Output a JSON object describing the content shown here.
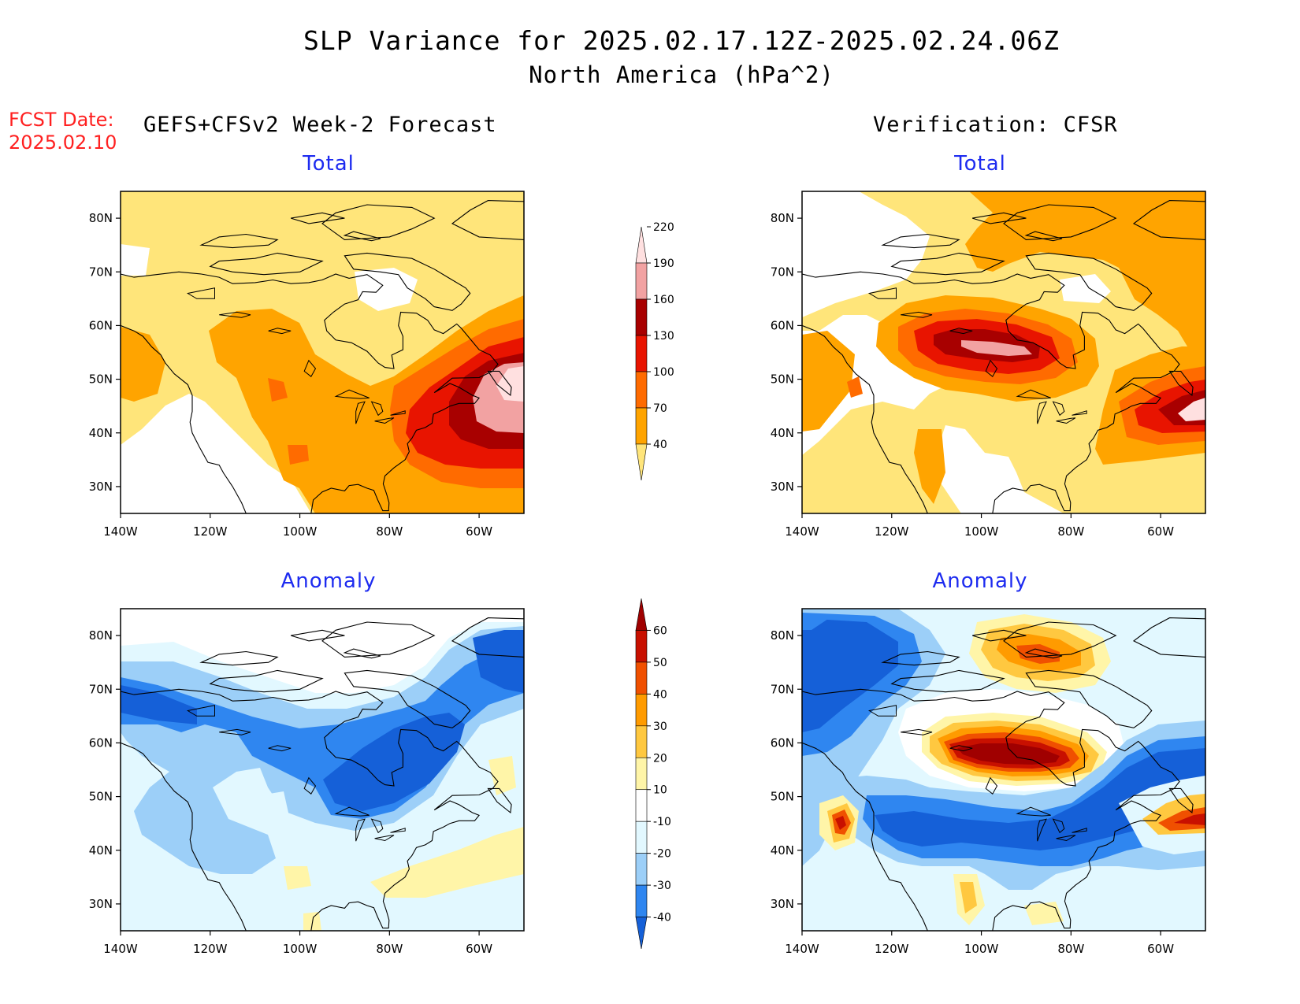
{
  "title": {
    "line1": "SLP Variance for 2025.02.17.12Z-2025.02.24.06Z",
    "line2": "North America (hPa^2)"
  },
  "fcst_date": {
    "label": "FCST Date:",
    "value": "2025.02.10"
  },
  "columns": {
    "left": "GEFS+CFSv2 Week-2 Forecast",
    "right": "Verification: CFSR"
  },
  "panels": {
    "fc_total": "Total",
    "ver_total": "Total",
    "fc_anom": "Anomaly",
    "ver_anom": "Anomaly"
  },
  "axes": {
    "lon_labels": [
      "140W",
      "120W",
      "100W",
      "80W",
      "60W"
    ],
    "lat_labels": [
      "80N",
      "70N",
      "60N",
      "50N",
      "40N",
      "30N"
    ]
  },
  "colorbars": {
    "total": {
      "labels": [
        "40",
        "70",
        "100",
        "130",
        "160",
        "190",
        "220"
      ],
      "colors": [
        "#ffe57a",
        "#ffa400",
        "#ff6b00",
        "#e81400",
        "#a80000",
        "#f2a2a2",
        "#ffe0e0"
      ]
    },
    "anomaly": {
      "labels": [
        "-40",
        "-30",
        "-20",
        "-10",
        "10",
        "20",
        "30",
        "40",
        "50",
        "60"
      ],
      "colors": [
        "#1560d8",
        "#2f86f0",
        "#9ccff8",
        "#e2f8ff",
        "#ffffff",
        "#fff5a8",
        "#ffc840",
        "#ff9b00",
        "#f05000",
        "#c81000",
        "#a00000"
      ]
    }
  }
}
